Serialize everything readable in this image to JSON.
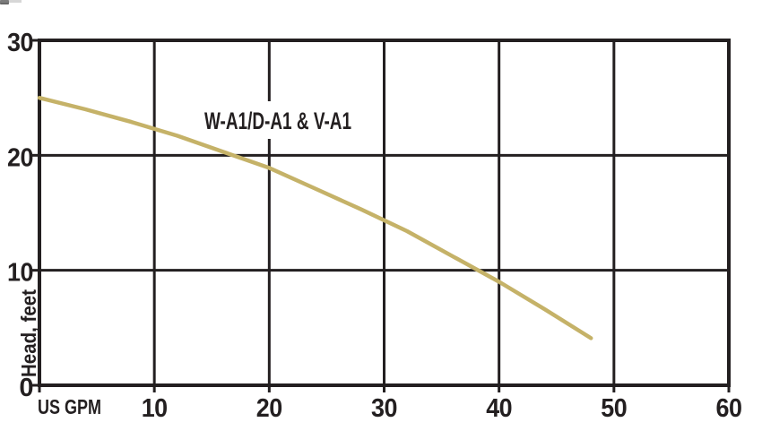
{
  "chart_data": {
    "type": "line",
    "title": "",
    "xlabel": "US GPM",
    "ylabel": "Head, feet",
    "xlim": [
      0,
      60
    ],
    "ylim": [
      0,
      30
    ],
    "xticks": [
      10,
      20,
      30,
      40,
      50,
      60
    ],
    "yticks": [
      0,
      10,
      20,
      30
    ],
    "grid": true,
    "legend_position": "none",
    "series": [
      {
        "name": "W-A1/D-A1 & V-A1",
        "x": [
          0,
          4,
          8,
          12,
          16,
          20,
          24,
          28,
          32,
          36,
          40,
          44,
          48
        ],
        "y": [
          25.0,
          24.0,
          22.9,
          21.7,
          20.3,
          18.9,
          17.1,
          15.3,
          13.4,
          11.2,
          9.0,
          6.6,
          4.1
        ]
      }
    ],
    "colors": {
      "curve": "#c5b268",
      "axis": "#231f20",
      "background": "#ffffff"
    }
  }
}
